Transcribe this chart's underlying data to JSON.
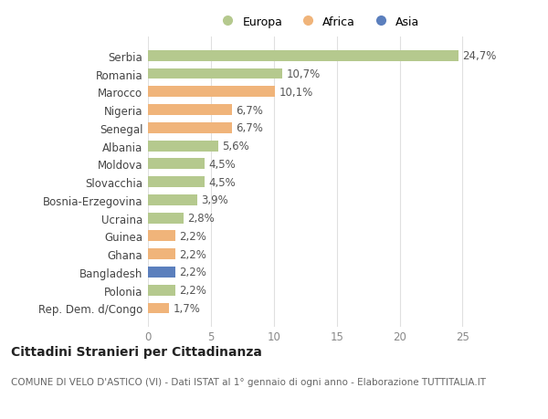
{
  "countries": [
    "Rep. Dem. d/Congo",
    "Polonia",
    "Bangladesh",
    "Ghana",
    "Guinea",
    "Ucraina",
    "Bosnia-Erzegovina",
    "Slovacchia",
    "Moldova",
    "Albania",
    "Senegal",
    "Nigeria",
    "Marocco",
    "Romania",
    "Serbia"
  ],
  "values": [
    1.7,
    2.2,
    2.2,
    2.2,
    2.2,
    2.8,
    3.9,
    4.5,
    4.5,
    5.6,
    6.7,
    6.7,
    10.1,
    10.7,
    24.7
  ],
  "labels": [
    "1,7%",
    "2,2%",
    "2,2%",
    "2,2%",
    "2,2%",
    "2,8%",
    "3,9%",
    "4,5%",
    "4,5%",
    "5,6%",
    "6,7%",
    "6,7%",
    "10,1%",
    "10,7%",
    "24,7%"
  ],
  "continents": [
    "Africa",
    "Europa",
    "Asia",
    "Africa",
    "Africa",
    "Europa",
    "Europa",
    "Europa",
    "Europa",
    "Europa",
    "Africa",
    "Africa",
    "Africa",
    "Europa",
    "Europa"
  ],
  "colors": {
    "Europa": "#b5c98e",
    "Africa": "#f0b47a",
    "Asia": "#5b7fbd"
  },
  "legend_labels": [
    "Europa",
    "Africa",
    "Asia"
  ],
  "legend_colors": [
    "#b5c98e",
    "#f0b47a",
    "#5b7fbd"
  ],
  "title": "Cittadini Stranieri per Cittadinanza",
  "subtitle": "COMUNE DI VELO D'ASTICO (VI) - Dati ISTAT al 1° gennaio di ogni anno - Elaborazione TUTTITALIA.IT",
  "xlim": [
    0,
    27
  ],
  "xticks": [
    0,
    5,
    10,
    15,
    20,
    25
  ],
  "background_color": "#ffffff",
  "grid_color": "#e0e0e0",
  "title_fontsize": 10,
  "subtitle_fontsize": 7.5,
  "label_fontsize": 8.5,
  "tick_fontsize": 8.5,
  "legend_fontsize": 9
}
